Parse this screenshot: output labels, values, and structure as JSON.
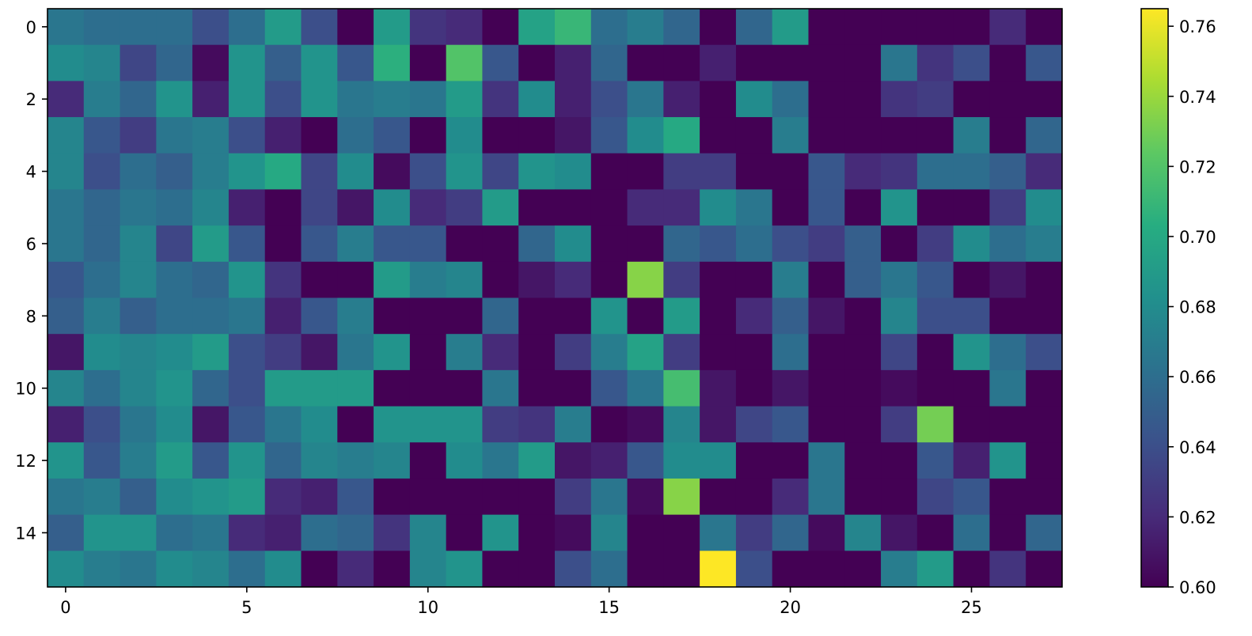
{
  "chart_data": {
    "type": "heatmap",
    "colormap": "viridis",
    "rows": 16,
    "cols": 28,
    "vmin": 0.6,
    "vmax": 0.765,
    "x_ticks": [
      0,
      5,
      10,
      15,
      20,
      25
    ],
    "x_tick_labels": [
      "0",
      "5",
      "10",
      "15",
      "20",
      "25"
    ],
    "y_ticks": [
      0,
      2,
      4,
      6,
      8,
      10,
      12,
      14
    ],
    "y_tick_labels": [
      "0",
      "2",
      "4",
      "6",
      "8",
      "10",
      "12",
      "14"
    ],
    "colorbar_ticks": [
      0.6,
      0.62,
      0.64,
      0.66,
      0.68,
      0.7,
      0.72,
      0.74,
      0.76
    ],
    "colorbar_tick_labels": [
      "0.60",
      "0.62",
      "0.64",
      "0.66",
      "0.68",
      "0.70",
      "0.72",
      "0.74",
      "0.76"
    ],
    "values": [
      [
        0.665,
        0.66,
        0.66,
        0.66,
        0.64,
        0.66,
        0.69,
        0.64,
        0.6,
        0.69,
        0.625,
        0.62,
        0.6,
        0.695,
        0.71,
        0.66,
        0.67,
        0.655,
        0.6,
        0.655,
        0.69,
        0.6,
        0.6,
        0.6,
        0.6,
        0.6,
        0.62,
        0.6
      ],
      [
        0.68,
        0.675,
        0.635,
        0.655,
        0.605,
        0.685,
        0.65,
        0.685,
        0.645,
        0.705,
        0.6,
        0.72,
        0.645,
        0.6,
        0.615,
        0.655,
        0.6,
        0.6,
        0.615,
        0.6,
        0.6,
        0.6,
        0.6,
        0.665,
        0.625,
        0.64,
        0.6,
        0.645
      ],
      [
        0.62,
        0.67,
        0.655,
        0.685,
        0.615,
        0.685,
        0.64,
        0.685,
        0.665,
        0.67,
        0.665,
        0.69,
        0.625,
        0.68,
        0.615,
        0.64,
        0.665,
        0.615,
        0.6,
        0.68,
        0.66,
        0.6,
        0.6,
        0.625,
        0.63,
        0.6,
        0.6,
        0.6
      ],
      [
        0.675,
        0.645,
        0.63,
        0.665,
        0.67,
        0.64,
        0.615,
        0.6,
        0.66,
        0.645,
        0.6,
        0.68,
        0.6,
        0.6,
        0.61,
        0.645,
        0.68,
        0.7,
        0.6,
        0.6,
        0.67,
        0.6,
        0.6,
        0.6,
        0.6,
        0.67,
        0.6,
        0.655
      ],
      [
        0.675,
        0.64,
        0.66,
        0.65,
        0.67,
        0.685,
        0.7,
        0.635,
        0.68,
        0.605,
        0.64,
        0.685,
        0.635,
        0.685,
        0.68,
        0.6,
        0.6,
        0.63,
        0.63,
        0.6,
        0.6,
        0.645,
        0.62,
        0.625,
        0.66,
        0.66,
        0.65,
        0.62
      ],
      [
        0.665,
        0.655,
        0.665,
        0.66,
        0.675,
        0.615,
        0.6,
        0.635,
        0.61,
        0.68,
        0.62,
        0.63,
        0.69,
        0.6,
        0.6,
        0.6,
        0.62,
        0.62,
        0.68,
        0.665,
        0.6,
        0.645,
        0.6,
        0.685,
        0.6,
        0.6,
        0.63,
        0.68
      ],
      [
        0.665,
        0.655,
        0.675,
        0.635,
        0.69,
        0.645,
        0.6,
        0.645,
        0.67,
        0.645,
        0.645,
        0.6,
        0.6,
        0.655,
        0.68,
        0.6,
        0.6,
        0.655,
        0.645,
        0.66,
        0.64,
        0.63,
        0.65,
        0.6,
        0.63,
        0.68,
        0.66,
        0.67
      ],
      [
        0.645,
        0.66,
        0.675,
        0.66,
        0.655,
        0.685,
        0.625,
        0.6,
        0.6,
        0.69,
        0.67,
        0.675,
        0.6,
        0.61,
        0.62,
        0.6,
        0.735,
        0.63,
        0.6,
        0.6,
        0.67,
        0.6,
        0.65,
        0.665,
        0.645,
        0.6,
        0.61,
        0.6
      ],
      [
        0.65,
        0.67,
        0.65,
        0.66,
        0.66,
        0.665,
        0.615,
        0.645,
        0.67,
        0.6,
        0.6,
        0.6,
        0.655,
        0.6,
        0.6,
        0.685,
        0.6,
        0.69,
        0.6,
        0.62,
        0.65,
        0.61,
        0.6,
        0.675,
        0.64,
        0.64,
        0.6,
        0.6
      ],
      [
        0.61,
        0.68,
        0.675,
        0.68,
        0.69,
        0.64,
        0.63,
        0.61,
        0.665,
        0.685,
        0.6,
        0.67,
        0.62,
        0.6,
        0.63,
        0.67,
        0.695,
        0.63,
        0.6,
        0.6,
        0.66,
        0.6,
        0.6,
        0.635,
        0.6,
        0.685,
        0.66,
        0.64
      ],
      [
        0.675,
        0.66,
        0.675,
        0.685,
        0.655,
        0.64,
        0.69,
        0.69,
        0.69,
        0.6,
        0.6,
        0.6,
        0.665,
        0.6,
        0.6,
        0.645,
        0.665,
        0.715,
        0.61,
        0.6,
        0.61,
        0.6,
        0.6,
        0.605,
        0.6,
        0.6,
        0.665,
        0.6
      ],
      [
        0.615,
        0.64,
        0.665,
        0.68,
        0.61,
        0.645,
        0.665,
        0.68,
        0.6,
        0.685,
        0.685,
        0.685,
        0.63,
        0.625,
        0.67,
        0.6,
        0.605,
        0.675,
        0.61,
        0.635,
        0.645,
        0.6,
        0.6,
        0.63,
        0.73,
        0.6,
        0.6,
        0.6
      ],
      [
        0.685,
        0.645,
        0.67,
        0.69,
        0.645,
        0.685,
        0.655,
        0.675,
        0.67,
        0.675,
        0.6,
        0.68,
        0.665,
        0.69,
        0.61,
        0.615,
        0.645,
        0.68,
        0.68,
        0.6,
        0.6,
        0.665,
        0.6,
        0.6,
        0.645,
        0.615,
        0.685,
        0.6
      ],
      [
        0.665,
        0.67,
        0.65,
        0.68,
        0.685,
        0.69,
        0.62,
        0.615,
        0.645,
        0.6,
        0.6,
        0.6,
        0.6,
        0.6,
        0.63,
        0.665,
        0.605,
        0.735,
        0.6,
        0.6,
        0.62,
        0.665,
        0.6,
        0.6,
        0.635,
        0.645,
        0.6,
        0.6
      ],
      [
        0.65,
        0.685,
        0.685,
        0.66,
        0.665,
        0.62,
        0.615,
        0.66,
        0.655,
        0.625,
        0.675,
        0.6,
        0.685,
        0.6,
        0.605,
        0.675,
        0.6,
        0.6,
        0.665,
        0.63,
        0.655,
        0.605,
        0.675,
        0.61,
        0.6,
        0.66,
        0.6,
        0.655
      ],
      [
        0.68,
        0.67,
        0.665,
        0.68,
        0.675,
        0.66,
        0.68,
        0.6,
        0.62,
        0.6,
        0.675,
        0.685,
        0.6,
        0.6,
        0.64,
        0.66,
        0.6,
        0.6,
        0.765,
        0.64,
        0.6,
        0.6,
        0.6,
        0.67,
        0.69,
        0.6,
        0.625,
        0.6
      ]
    ]
  }
}
